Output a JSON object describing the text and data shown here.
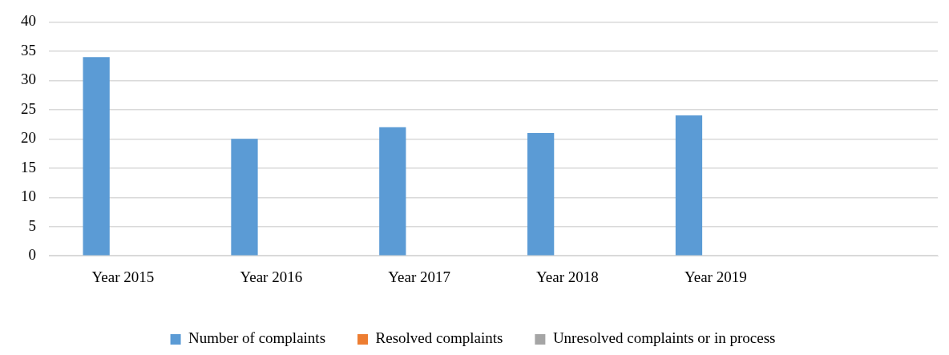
{
  "chart_data": {
    "type": "bar",
    "categories": [
      "Year 2015",
      "Year 2016",
      "Year 2017",
      "Year 2018",
      "Year 2019",
      null
    ],
    "series": [
      {
        "name": "Number of complaints",
        "color": "#5b9bd5",
        "values": [
          34,
          20,
          22,
          21,
          24,
          null
        ]
      },
      {
        "name": "Resolved complaints",
        "color": "#ed7d31",
        "values": [
          null,
          null,
          null,
          null,
          null,
          null
        ]
      },
      {
        "name": "Unresolved complaints or in process",
        "color": "#a5a5a5",
        "values": [
          null,
          null,
          null,
          null,
          null,
          null
        ]
      }
    ],
    "ylim": [
      0,
      40
    ],
    "yticks": [
      0,
      5,
      10,
      15,
      20,
      25,
      30,
      35,
      40
    ],
    "grid": "y",
    "legend": "bottom"
  }
}
